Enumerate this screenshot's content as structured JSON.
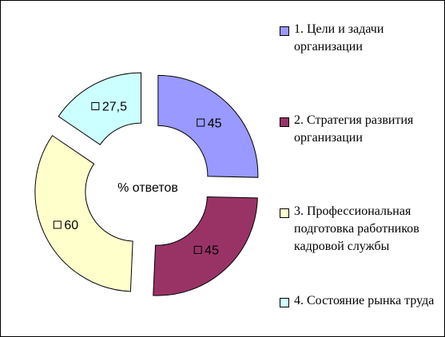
{
  "chart_data": {
    "type": "doughnut",
    "title": "% ответов",
    "categories": [
      "1. Цели и задачи организации",
      "2. Стратегия развития организации",
      "3. Профессиональная подготовка работников кадровой службы",
      "4. Состояние рынка труда"
    ],
    "values": [
      45,
      45,
      60,
      27.5
    ],
    "value_labels": [
      "45",
      "45",
      "60",
      "27,5"
    ],
    "colors": [
      "#9999ff",
      "#993366",
      "#ffffcc",
      "#ccffff"
    ],
    "legend": "right"
  }
}
